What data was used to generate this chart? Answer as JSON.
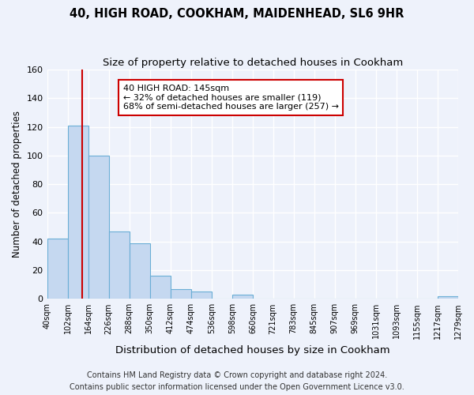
{
  "title": "40, HIGH ROAD, COOKHAM, MAIDENHEAD, SL6 9HR",
  "subtitle": "Size of property relative to detached houses in Cookham",
  "xlabel": "Distribution of detached houses by size in Cookham",
  "ylabel": "Number of detached properties",
  "bin_edges": [
    40,
    102,
    164,
    226,
    288,
    350,
    412,
    474,
    536,
    598,
    660,
    721,
    783,
    845,
    907,
    969,
    1031,
    1093,
    1155,
    1217,
    1279
  ],
  "bin_counts": [
    42,
    121,
    100,
    47,
    39,
    16,
    7,
    5,
    0,
    3,
    0,
    0,
    0,
    0,
    0,
    0,
    0,
    0,
    0,
    2
  ],
  "bar_color": "#c5d8f0",
  "bar_edge_color": "#6aaed6",
  "vline_x": 145,
  "vline_color": "#cc0000",
  "annotation_text": "40 HIGH ROAD: 145sqm\n← 32% of detached houses are smaller (119)\n68% of semi-detached houses are larger (257) →",
  "annotation_box_color": "#ffffff",
  "annotation_box_edge": "#cc0000",
  "ylim": [
    0,
    160
  ],
  "tick_labels": [
    "40sqm",
    "102sqm",
    "164sqm",
    "226sqm",
    "288sqm",
    "350sqm",
    "412sqm",
    "474sqm",
    "536sqm",
    "598sqm",
    "660sqm",
    "721sqm",
    "783sqm",
    "845sqm",
    "907sqm",
    "969sqm",
    "1031sqm",
    "1093sqm",
    "1155sqm",
    "1217sqm",
    "1279sqm"
  ],
  "footer_line1": "Contains HM Land Registry data © Crown copyright and database right 2024.",
  "footer_line2": "Contains public sector information licensed under the Open Government Licence v3.0.",
  "background_color": "#eef2fb",
  "grid_color": "#ffffff",
  "title_fontsize": 10.5,
  "subtitle_fontsize": 9.5,
  "xlabel_fontsize": 9.5,
  "ylabel_fontsize": 8.5,
  "tick_fontsize": 7,
  "footer_fontsize": 7,
  "annotation_fontsize": 8
}
